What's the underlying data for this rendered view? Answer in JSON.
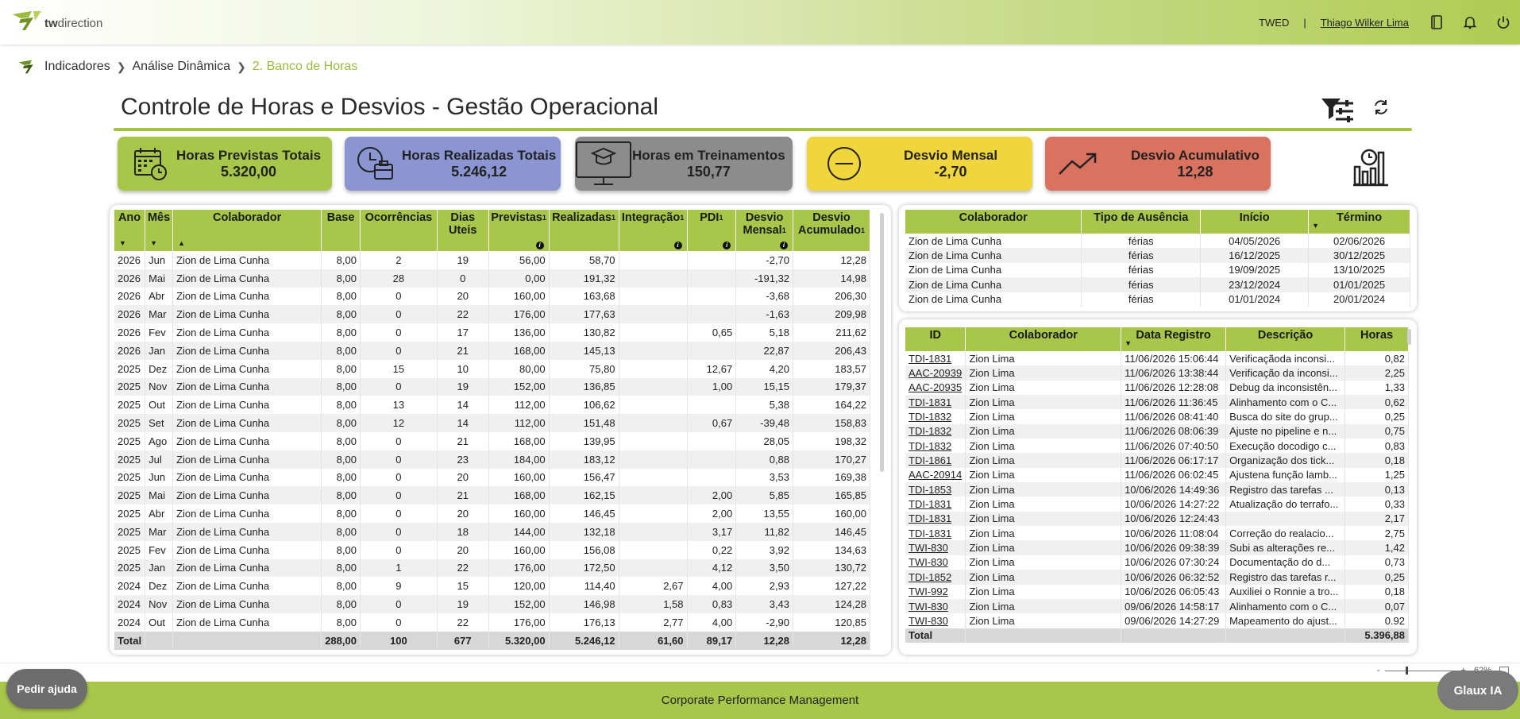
{
  "header": {
    "logo_text_bold": "tw",
    "logo_text": "direction",
    "org": "TWED",
    "separator": "|",
    "user": "Thiago Wilker Lima"
  },
  "breadcrumb": {
    "items": [
      "Indicadores",
      "Análise Dinâmica"
    ],
    "current": "2. Banco de Horas"
  },
  "page": {
    "title": "Controle de Horas e Desvios - Gestão Operacional"
  },
  "cards": [
    {
      "label": "Horas Previstas Totais",
      "value": "5.320,00",
      "icon": "calendar-clock-icon",
      "color": "#a8c64a"
    },
    {
      "label": "Horas Realizadas Totais",
      "value": "5.246,12",
      "icon": "clock-briefcase-icon",
      "color": "#8a95d2"
    },
    {
      "label": "Horas em Treinamentos",
      "value": "150,77",
      "icon": "training-monitor-icon",
      "color": "#8c8c8c"
    },
    {
      "label": "Desvio Mensal",
      "value": "-2,70",
      "icon": "minus-circle-icon",
      "color": "#f0d63c"
    },
    {
      "label": "Desvio Acumulativo",
      "value": "12,28",
      "icon": "trend-up-icon",
      "color": "#d9725f"
    }
  ],
  "main_table": {
    "headers": [
      "Ano",
      "Mês",
      "Colaborador",
      "Base",
      "Ocorrências",
      "Dias Uteis",
      "Previstas",
      "Realizadas",
      "Integração",
      "PDI",
      "Desvio Mensal",
      "Desvio Acumulado"
    ],
    "rows": [
      [
        "2026",
        "Jun",
        "Zion de Lima Cunha",
        "8,00",
        "2",
        "19",
        "56,00",
        "58,70",
        "",
        "",
        "-2,70",
        "12,28"
      ],
      [
        "2026",
        "Mai",
        "Zion de Lima Cunha",
        "8,00",
        "28",
        "0",
        "0,00",
        "191,32",
        "",
        "",
        "-191,32",
        "14,98"
      ],
      [
        "2026",
        "Abr",
        "Zion de Lima Cunha",
        "8,00",
        "0",
        "20",
        "160,00",
        "163,68",
        "",
        "",
        "-3,68",
        "206,30"
      ],
      [
        "2026",
        "Mar",
        "Zion de Lima Cunha",
        "8,00",
        "0",
        "22",
        "176,00",
        "177,63",
        "",
        "",
        "-1,63",
        "209,98"
      ],
      [
        "2026",
        "Fev",
        "Zion de Lima Cunha",
        "8,00",
        "0",
        "17",
        "136,00",
        "130,82",
        "",
        "0,65",
        "5,18",
        "211,62"
      ],
      [
        "2026",
        "Jan",
        "Zion de Lima Cunha",
        "8,00",
        "0",
        "21",
        "168,00",
        "145,13",
        "",
        "",
        "22,87",
        "206,43"
      ],
      [
        "2025",
        "Dez",
        "Zion de Lima Cunha",
        "8,00",
        "15",
        "10",
        "80,00",
        "75,80",
        "",
        "12,67",
        "4,20",
        "183,57"
      ],
      [
        "2025",
        "Nov",
        "Zion de Lima Cunha",
        "8,00",
        "0",
        "19",
        "152,00",
        "136,85",
        "",
        "1,00",
        "15,15",
        "179,37"
      ],
      [
        "2025",
        "Out",
        "Zion de Lima Cunha",
        "8,00",
        "13",
        "14",
        "112,00",
        "106,62",
        "",
        "",
        "5,38",
        "164,22"
      ],
      [
        "2025",
        "Set",
        "Zion de Lima Cunha",
        "8,00",
        "12",
        "14",
        "112,00",
        "151,48",
        "",
        "0,67",
        "-39,48",
        "158,83"
      ],
      [
        "2025",
        "Ago",
        "Zion de Lima Cunha",
        "8,00",
        "0",
        "21",
        "168,00",
        "139,95",
        "",
        "",
        "28,05",
        "198,32"
      ],
      [
        "2025",
        "Jul",
        "Zion de Lima Cunha",
        "8,00",
        "0",
        "23",
        "184,00",
        "183,12",
        "",
        "",
        "0,88",
        "170,27"
      ],
      [
        "2025",
        "Jun",
        "Zion de Lima Cunha",
        "8,00",
        "0",
        "20",
        "160,00",
        "156,47",
        "",
        "",
        "3,53",
        "169,38"
      ],
      [
        "2025",
        "Mai",
        "Zion de Lima Cunha",
        "8,00",
        "0",
        "21",
        "168,00",
        "162,15",
        "",
        "2,00",
        "5,85",
        "165,85"
      ],
      [
        "2025",
        "Abr",
        "Zion de Lima Cunha",
        "8,00",
        "0",
        "20",
        "160,00",
        "146,45",
        "",
        "2,00",
        "13,55",
        "160,00"
      ],
      [
        "2025",
        "Mar",
        "Zion de Lima Cunha",
        "8,00",
        "0",
        "18",
        "144,00",
        "132,18",
        "",
        "3,17",
        "11,82",
        "146,45"
      ],
      [
        "2025",
        "Fev",
        "Zion de Lima Cunha",
        "8,00",
        "0",
        "20",
        "160,00",
        "156,08",
        "",
        "0,22",
        "3,92",
        "134,63"
      ],
      [
        "2025",
        "Jan",
        "Zion de Lima Cunha",
        "8,00",
        "1",
        "22",
        "176,00",
        "172,50",
        "",
        "4,12",
        "3,50",
        "130,72"
      ],
      [
        "2024",
        "Dez",
        "Zion de Lima Cunha",
        "8,00",
        "9",
        "15",
        "120,00",
        "114,40",
        "2,67",
        "4,00",
        "2,93",
        "127,22"
      ],
      [
        "2024",
        "Nov",
        "Zion de Lima Cunha",
        "8,00",
        "0",
        "19",
        "152,00",
        "146,98",
        "1,58",
        "0,83",
        "3,43",
        "124,28"
      ],
      [
        "2024",
        "Out",
        "Zion de Lima Cunha",
        "8,00",
        "0",
        "22",
        "176,00",
        "176,13",
        "2,77",
        "4,00",
        "-2,90",
        "120,85"
      ]
    ],
    "total": [
      "Total",
      "",
      "",
      "288,00",
      "100",
      "677",
      "5.320,00",
      "5.246,12",
      "61,60",
      "89,17",
      "12,28",
      "12,28"
    ]
  },
  "absence_table": {
    "headers": [
      "Colaborador",
      "Tipo de Ausência",
      "Início",
      "Término"
    ],
    "rows": [
      [
        "Zion de Lima Cunha",
        "férias",
        "04/05/2026",
        "02/06/2026"
      ],
      [
        "Zion de Lima Cunha",
        "férias",
        "16/12/2025",
        "30/12/2025"
      ],
      [
        "Zion de Lima Cunha",
        "férias",
        "19/09/2025",
        "13/10/2025"
      ],
      [
        "Zion de Lima Cunha",
        "férias",
        "23/12/2024",
        "01/01/2025"
      ],
      [
        "Zion de Lima Cunha",
        "férias",
        "01/01/2024",
        "20/01/2024"
      ]
    ]
  },
  "registry_table": {
    "headers": [
      "ID",
      "Colaborador",
      "Data Registro",
      "Descrição",
      "Horas"
    ],
    "rows": [
      [
        "TDI-1831",
        "Zion Lima",
        "11/06/2026 15:06:44",
        "Verificaçãoda inconsi...",
        "0,82"
      ],
      [
        "AAC-20939",
        "Zion Lima",
        "11/06/2026 13:38:44",
        "Verificação da inconsi...",
        "2,25"
      ],
      [
        "AAC-20935",
        "Zion Lima",
        "11/06/2026 12:28:08",
        "Debug da inconsistên...",
        "1,33"
      ],
      [
        "TDI-1831",
        "Zion Lima",
        "11/06/2026 11:36:45",
        "Alinhamento com o C...",
        "0,62"
      ],
      [
        "TDI-1832",
        "Zion Lima",
        "11/06/2026 08:41:40",
        "Busca do site do grup...",
        "0,25"
      ],
      [
        "TDI-1832",
        "Zion Lima",
        "11/06/2026 08:06:39",
        "Ajuste no pipeline e n...",
        "0,75"
      ],
      [
        "TDI-1832",
        "Zion Lima",
        "11/06/2026 07:40:50",
        "Execução docodigo c...",
        "0,83"
      ],
      [
        "TDI-1861",
        "Zion Lima",
        "11/06/2026 06:17:17",
        "Organização dos tick...",
        "0,18"
      ],
      [
        "AAC-20914",
        "Zion Lima",
        "11/06/2026 06:02:45",
        "Ajustena função lamb...",
        "1,25"
      ],
      [
        "TDI-1853",
        "Zion Lima",
        "10/06/2026 14:49:36",
        "Registro das tarefas ...",
        "0,13"
      ],
      [
        "TDI-1831",
        "Zion Lima",
        "10/06/2026 14:27:22",
        "Atualização do terrafo...",
        "0,33"
      ],
      [
        "TDI-1831",
        "Zion Lima",
        "10/06/2026 12:24:43",
        "",
        "2,17"
      ],
      [
        "TDI-1831",
        "Zion Lima",
        "10/06/2026 11:08:04",
        "Correção do realacio...",
        "2,75"
      ],
      [
        "TWI-830",
        "Zion Lima",
        "10/06/2026 09:38:39",
        "Subi as alterações re...",
        "1,42"
      ],
      [
        "TWI-830",
        "Zion Lima",
        "10/06/2026 07:30:24",
        "Documentação do d...",
        "0,73"
      ],
      [
        "TDI-1852",
        "Zion Lima",
        "10/06/2026 06:32:52",
        "Registro das tarefas r...",
        "0,25"
      ],
      [
        "TWI-992",
        "Zion Lima",
        "10/06/2026 06:05:43",
        "Auxiliei o Ronnie a tro...",
        "0,18"
      ],
      [
        "TWI-830",
        "Zion Lima",
        "09/06/2026 14:58:17",
        "Alinhamento com o C...",
        "0,07"
      ],
      [
        "TWI-830",
        "Zion Lima",
        "09/06/2026 14:27:29",
        "Mapeamento do ajust...",
        "0.92"
      ]
    ],
    "total_label": "Total",
    "total_value": "5.396,88"
  },
  "status": {
    "zoom_minus": "-",
    "zoom_plus": "+",
    "zoom_level": "62%"
  },
  "footer": {
    "text": "Corporate Performance Management"
  },
  "buttons": {
    "help": "Pedir ajuda",
    "glaux": "Glaux IA"
  }
}
